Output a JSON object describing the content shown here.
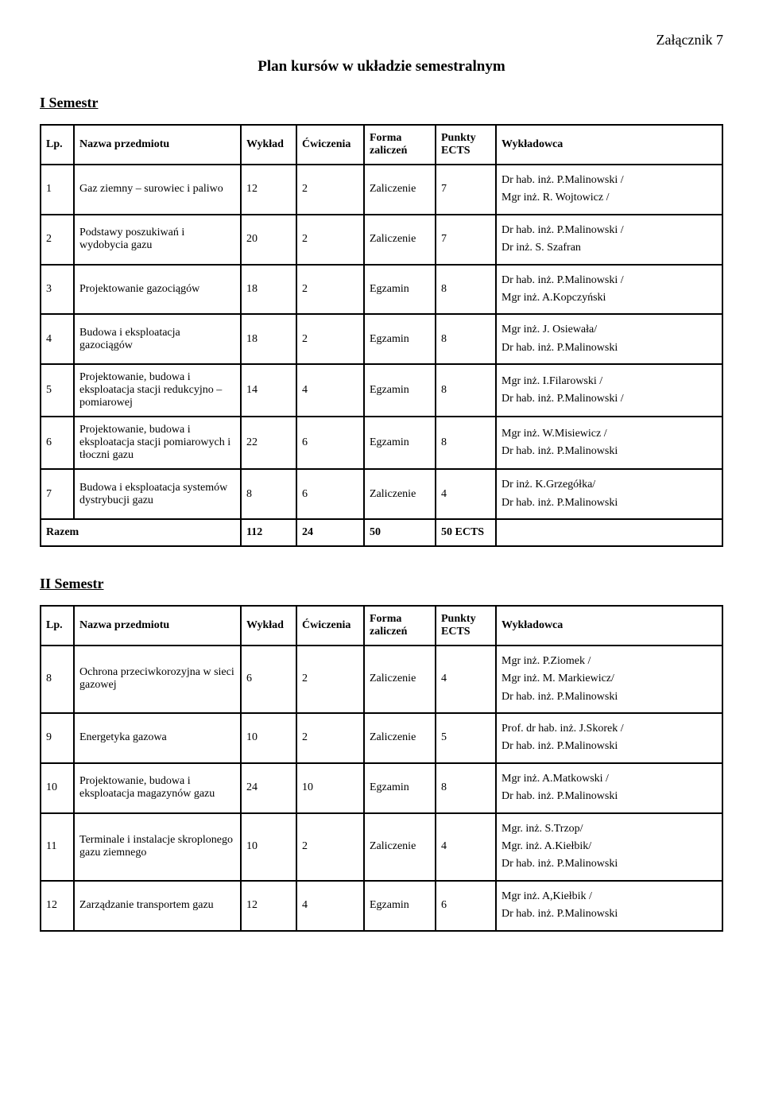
{
  "attachment_label": "Załącznik 7",
  "main_title": "Plan kursów w układzie semestralnym",
  "semesters": [
    {
      "title": "I Semestr",
      "columns": [
        "Lp.",
        "Nazwa przedmiotu",
        "Wykład",
        "Ćwiczenia",
        "Forma zaliczeń",
        "Punkty ECTS",
        "Wykładowca"
      ],
      "rows": [
        {
          "lp": "1",
          "name": "Gaz ziemny – surowiec i paliwo",
          "wyklad": "12",
          "cwiczenia": "2",
          "forma": "Zaliczenie",
          "ects": "7",
          "lecturers": [
            "Dr hab. inż. P.Malinowski /",
            "Mgr inż. R. Wojtowicz /"
          ]
        },
        {
          "lp": "2",
          "name": "Podstawy poszukiwań i wydobycia gazu",
          "wyklad": "20",
          "cwiczenia": "2",
          "forma": "Zaliczenie",
          "ects": "7",
          "lecturers": [
            "Dr hab. inż. P.Malinowski /",
            "Dr inż. S. Szafran"
          ]
        },
        {
          "lp": "3",
          "name": "Projektowanie gazociągów",
          "wyklad": "18",
          "cwiczenia": "2",
          "forma": "Egzamin",
          "ects": "8",
          "lecturers": [
            "Dr hab. inż. P.Malinowski /",
            "Mgr inż. A.Kopczyński"
          ]
        },
        {
          "lp": "4",
          "name": "Budowa i eksploatacja gazociągów",
          "wyklad": "18",
          "cwiczenia": "2",
          "forma": "Egzamin",
          "ects": "8",
          "lecturers": [
            "Mgr inż. J. Osiewała/",
            "Dr hab. inż. P.Malinowski"
          ]
        },
        {
          "lp": "5",
          "name": "Projektowanie, budowa i eksploatacja stacji redukcyjno – pomiarowej",
          "wyklad": "14",
          "cwiczenia": "4",
          "forma": "Egzamin",
          "ects": "8",
          "lecturers": [
            "Mgr inż. I.Filarowski /",
            "Dr hab. inż. P.Malinowski /"
          ]
        },
        {
          "lp": "6",
          "name": "Projektowanie, budowa i eksploatacja stacji pomiarowych i tłoczni gazu",
          "wyklad": "22",
          "cwiczenia": "6",
          "forma": "Egzamin",
          "ects": "8",
          "lecturers": [
            "Mgr inż. W.Misiewicz /",
            "Dr hab. inż. P.Malinowski"
          ]
        },
        {
          "lp": "7",
          "name": "Budowa i eksploatacja systemów dystrybucji gazu",
          "wyklad": "8",
          "cwiczenia": "6",
          "forma": "Zaliczenie",
          "ects": "4",
          "lecturers": [
            "Dr inż. K.Grzegółka/",
            "Dr hab. inż. P.Malinowski"
          ]
        }
      ],
      "summary": {
        "label": "Razem",
        "wyklad": "112",
        "cwiczenia": "24",
        "forma": "50",
        "ects": "50 ECTS"
      }
    },
    {
      "title": "II Semestr",
      "columns": [
        "Lp.",
        "Nazwa przedmiotu",
        "Wykład",
        "Ćwiczenia",
        "Forma zaliczeń",
        "Punkty ECTS",
        "Wykładowca"
      ],
      "rows": [
        {
          "lp": "8",
          "name": "Ochrona przeciwkorozyjna w sieci gazowej",
          "wyklad": "6",
          "cwiczenia": "2",
          "forma": "Zaliczenie",
          "ects": "4",
          "lecturers": [
            "Mgr inż. P.Ziomek /",
            "Mgr inż. M. Markiewicz/",
            "Dr hab. inż. P.Malinowski"
          ]
        },
        {
          "lp": "9",
          "name": "Energetyka gazowa",
          "wyklad": "10",
          "cwiczenia": "2",
          "forma": "Zaliczenie",
          "ects": "5",
          "lecturers": [
            "Prof. dr hab. inż. J.Skorek /",
            "Dr hab. inż. P.Malinowski"
          ]
        },
        {
          "lp": "10",
          "name": "Projektowanie, budowa i eksploatacja magazynów gazu",
          "wyklad": "24",
          "cwiczenia": "10",
          "forma": "Egzamin",
          "ects": "8",
          "lecturers": [
            "Mgr inż. A.Matkowski /",
            "Dr hab. inż. P.Malinowski"
          ]
        },
        {
          "lp": "11",
          "name": "Terminale i instalacje skroplonego gazu ziemnego",
          "wyklad": "10",
          "cwiczenia": "2",
          "forma": "Zaliczenie",
          "ects": "4",
          "lecturers": [
            "Mgr. inż. S.Trzop/",
            "Mgr. inż. A.Kiełbik/",
            "Dr hab. inż. P.Malinowski"
          ]
        },
        {
          "lp": "12",
          "name": "Zarządzanie transportem gazu",
          "wyklad": "12",
          "cwiczenia": "4",
          "forma": "Egzamin",
          "ects": "6",
          "lecturers": [
            "Mgr inż. A,Kiełbik /",
            "Dr hab. inż. P.Malinowski"
          ]
        }
      ],
      "summary": null
    }
  ]
}
